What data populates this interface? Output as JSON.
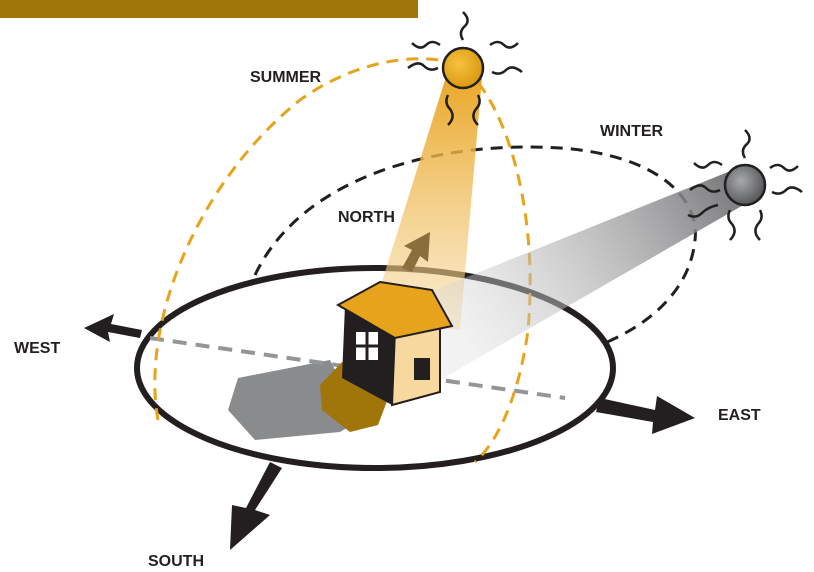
{
  "labels": {
    "summer": "SUMMER",
    "winter": "WINTER",
    "north": "NORTH",
    "west": "WEST",
    "east": "EAST",
    "south": "SOUTH"
  }
}
